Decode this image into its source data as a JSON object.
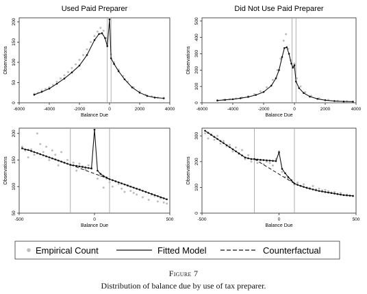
{
  "chart_data": [
    {
      "type": "scatter",
      "title": "Used Paid Preparer",
      "xlabel": "Balance Due",
      "ylabel": "Observations",
      "xlim": [
        -6000,
        4000
      ],
      "ylim": [
        0,
        210
      ],
      "xticks": [
        -6000,
        -4000,
        -2000,
        0,
        2000,
        4000
      ],
      "yticks": [
        0,
        50,
        100,
        150,
        200
      ],
      "vlines": [
        -150,
        100
      ],
      "series": [
        {
          "name": "Empirical Count",
          "style": "scatter",
          "x": [
            -5000,
            -4750,
            -4500,
            -4250,
            -4000,
            -3750,
            -3500,
            -3250,
            -3000,
            -2750,
            -2500,
            -2250,
            -2000,
            -1750,
            -1500,
            -1250,
            -1000,
            -800,
            -600,
            -400,
            -200,
            0,
            100,
            300,
            600,
            900,
            1200,
            1600,
            2000,
            2400,
            2800,
            3200,
            3600
          ],
          "y": [
            22,
            25,
            30,
            34,
            38,
            44,
            52,
            60,
            68,
            76,
            86,
            95,
            106,
            118,
            132,
            150,
            165,
            176,
            185,
            178,
            160,
            208,
            120,
            100,
            82,
            66,
            52,
            38,
            28,
            20,
            16,
            13,
            12
          ]
        },
        {
          "name": "Fitted Model",
          "style": "line-markers",
          "x": [
            -5000,
            -4500,
            -4000,
            -3500,
            -3000,
            -2500,
            -2000,
            -1500,
            -1000,
            -700,
            -500,
            -300,
            -150,
            0,
            100,
            300,
            600,
            1000,
            1500,
            2000,
            2500,
            3000,
            3600
          ],
          "y": [
            20,
            27,
            35,
            47,
            60,
            75,
            92,
            118,
            155,
            170,
            172,
            160,
            140,
            206,
            110,
            96,
            78,
            58,
            38,
            25,
            17,
            13,
            11
          ]
        }
      ]
    },
    {
      "type": "scatter",
      "title": "Did Not Use Paid Preparer",
      "xlabel": "Balance Due",
      "ylabel": "Observations",
      "xlim": [
        -6000,
        4000
      ],
      "ylim": [
        0,
        520
      ],
      "xticks": [
        -6000,
        -4000,
        -2000,
        0,
        2000,
        4000
      ],
      "yticks": [
        0,
        100,
        200,
        300,
        400,
        500
      ],
      "vlines": [
        -150,
        100
      ],
      "series": [
        {
          "name": "Empirical Count",
          "style": "scatter",
          "x": [
            -5000,
            -4600,
            -4200,
            -3800,
            -3400,
            -3000,
            -2600,
            -2200,
            -1800,
            -1400,
            -1100,
            -900,
            -700,
            -550,
            -400,
            -250,
            -100,
            0,
            150,
            400,
            700,
            1100,
            1600,
            2200,
            2800,
            3400
          ],
          "y": [
            15,
            18,
            22,
            26,
            32,
            40,
            52,
            70,
            95,
            140,
            200,
            270,
            380,
            420,
            330,
            260,
            220,
            240,
            150,
            100,
            65,
            42,
            28,
            18,
            12,
            10
          ]
        },
        {
          "name": "Fitted Model",
          "style": "line-markers",
          "x": [
            -5000,
            -4500,
            -4000,
            -3500,
            -3000,
            -2500,
            -2000,
            -1500,
            -1200,
            -1000,
            -800,
            -650,
            -500,
            -350,
            -200,
            -100,
            0,
            100,
            300,
            600,
            1000,
            1500,
            2000,
            2600,
            3200,
            3800
          ],
          "y": [
            14,
            18,
            22,
            28,
            36,
            48,
            66,
            105,
            150,
            200,
            280,
            335,
            340,
            300,
            240,
            215,
            230,
            130,
            90,
            60,
            38,
            24,
            16,
            11,
            8,
            7
          ]
        }
      ]
    },
    {
      "type": "scatter",
      "title": "",
      "xlabel": "Balance Due",
      "ylabel": "Observations",
      "xlim": [
        -500,
        500
      ],
      "ylim": [
        50,
        210
      ],
      "xticks": [
        -500,
        0,
        500
      ],
      "yticks": [
        50,
        100,
        150,
        200
      ],
      "vlines": [
        -160,
        100
      ],
      "series": [
        {
          "name": "Empirical Count",
          "style": "scatter",
          "x": [
            -480,
            -460,
            -440,
            -420,
            -400,
            -380,
            -360,
            -340,
            -320,
            -300,
            -280,
            -260,
            -240,
            -220,
            -200,
            -180,
            -160,
            -140,
            -120,
            -100,
            -80,
            -60,
            -40,
            -20,
            0,
            20,
            40,
            60,
            80,
            100,
            120,
            140,
            160,
            180,
            200,
            220,
            240,
            260,
            280,
            300,
            320,
            340,
            360,
            380,
            400,
            420,
            440,
            460,
            480
          ],
          "y": [
            175,
            168,
            155,
            170,
            160,
            200,
            180,
            165,
            175,
            150,
            168,
            160,
            140,
            165,
            145,
            150,
            140,
            145,
            130,
            143,
            138,
            132,
            140,
            135,
            208,
            115,
            120,
            98,
            115,
            108,
            100,
            110,
            105,
            96,
            90,
            102,
            92,
            88,
            85,
            95,
            80,
            90,
            75,
            85,
            82,
            72,
            78,
            70,
            68
          ]
        },
        {
          "name": "Fitted Model",
          "style": "line-markers",
          "x": [
            -480,
            -460,
            -440,
            -420,
            -400,
            -380,
            -360,
            -340,
            -320,
            -300,
            -280,
            -260,
            -240,
            -220,
            -200,
            -180,
            -160,
            -140,
            -120,
            -100,
            -80,
            -60,
            -40,
            -20,
            0,
            20,
            40,
            60,
            80,
            100,
            120,
            140,
            160,
            180,
            200,
            220,
            240,
            260,
            280,
            300,
            320,
            340,
            360,
            380,
            400,
            420,
            440,
            460,
            480
          ],
          "y": [
            172,
            170,
            169,
            167,
            165,
            163,
            161,
            159,
            157,
            155,
            153,
            151,
            149,
            147,
            145,
            143,
            141,
            140,
            139,
            138,
            137,
            136,
            135,
            134,
            207,
            130,
            124,
            120,
            117,
            114,
            112,
            110,
            108,
            106,
            104,
            102,
            100,
            98,
            96,
            94,
            92,
            90,
            88,
            86,
            84,
            82,
            80,
            78,
            76
          ]
        },
        {
          "name": "Counterfactual",
          "style": "dashed",
          "x": [
            -160,
            100
          ],
          "y": [
            141,
            114
          ]
        }
      ]
    },
    {
      "type": "scatter",
      "title": "",
      "xlabel": "Balance Due",
      "ylabel": "Observations",
      "xlim": [
        -500,
        500
      ],
      "ylim": [
        0,
        330
      ],
      "xticks": [
        -500,
        0,
        500
      ],
      "yticks": [
        0,
        100,
        200,
        300
      ],
      "vlines": [
        -160,
        100
      ],
      "series": [
        {
          "name": "Empirical Count",
          "style": "scatter",
          "x": [
            -480,
            -460,
            -440,
            -420,
            -400,
            -380,
            -360,
            -340,
            -320,
            -300,
            -280,
            -260,
            -240,
            -220,
            -200,
            -180,
            -160,
            -140,
            -120,
            -100,
            -80,
            -60,
            -40,
            -20,
            0,
            20,
            40,
            60,
            80,
            100,
            120,
            140,
            160,
            180,
            200,
            220,
            240,
            260,
            280,
            300,
            320,
            340,
            360,
            380,
            400,
            420,
            440,
            460,
            480
          ],
          "y": [
            310,
            290,
            305,
            285,
            300,
            270,
            280,
            260,
            265,
            240,
            255,
            230,
            245,
            210,
            225,
            200,
            210,
            195,
            205,
            190,
            200,
            195,
            185,
            210,
            240,
            160,
            140,
            135,
            125,
            110,
            118,
            105,
            112,
            100,
            98,
            105,
            92,
            95,
            88,
            90,
            85,
            80,
            82,
            75,
            78,
            70,
            72,
            68,
            66
          ]
        },
        {
          "name": "Fitted Model",
          "style": "line-markers",
          "x": [
            -480,
            -460,
            -440,
            -420,
            -400,
            -380,
            -360,
            -340,
            -320,
            -300,
            -280,
            -260,
            -240,
            -220,
            -200,
            -180,
            -160,
            -140,
            -120,
            -100,
            -80,
            -60,
            -40,
            -20,
            0,
            20,
            40,
            60,
            80,
            100,
            120,
            140,
            160,
            180,
            200,
            220,
            240,
            260,
            280,
            300,
            320,
            340,
            360,
            380,
            400,
            420,
            440,
            460,
            480
          ],
          "y": [
            320,
            312,
            304,
            296,
            288,
            280,
            272,
            264,
            256,
            248,
            240,
            232,
            224,
            216,
            213,
            210,
            210,
            208,
            207,
            206,
            205,
            204,
            203,
            202,
            236,
            172,
            155,
            140,
            128,
            115,
            110,
            106,
            102,
            98,
            95,
            92,
            89,
            86,
            84,
            82,
            80,
            78,
            76,
            74,
            72,
            70,
            69,
            68,
            67
          ]
        },
        {
          "name": "Counterfactual",
          "style": "dashed",
          "x": [
            -160,
            100
          ],
          "y": [
            210,
            115
          ]
        }
      ]
    }
  ],
  "legend": {
    "empirical": "Empirical Count",
    "fitted": "Fitted Model",
    "counterfactual": "Counterfactual"
  },
  "caption": {
    "figure": "Figure 7",
    "text": "Distribution of balance due by use of tax preparer."
  }
}
